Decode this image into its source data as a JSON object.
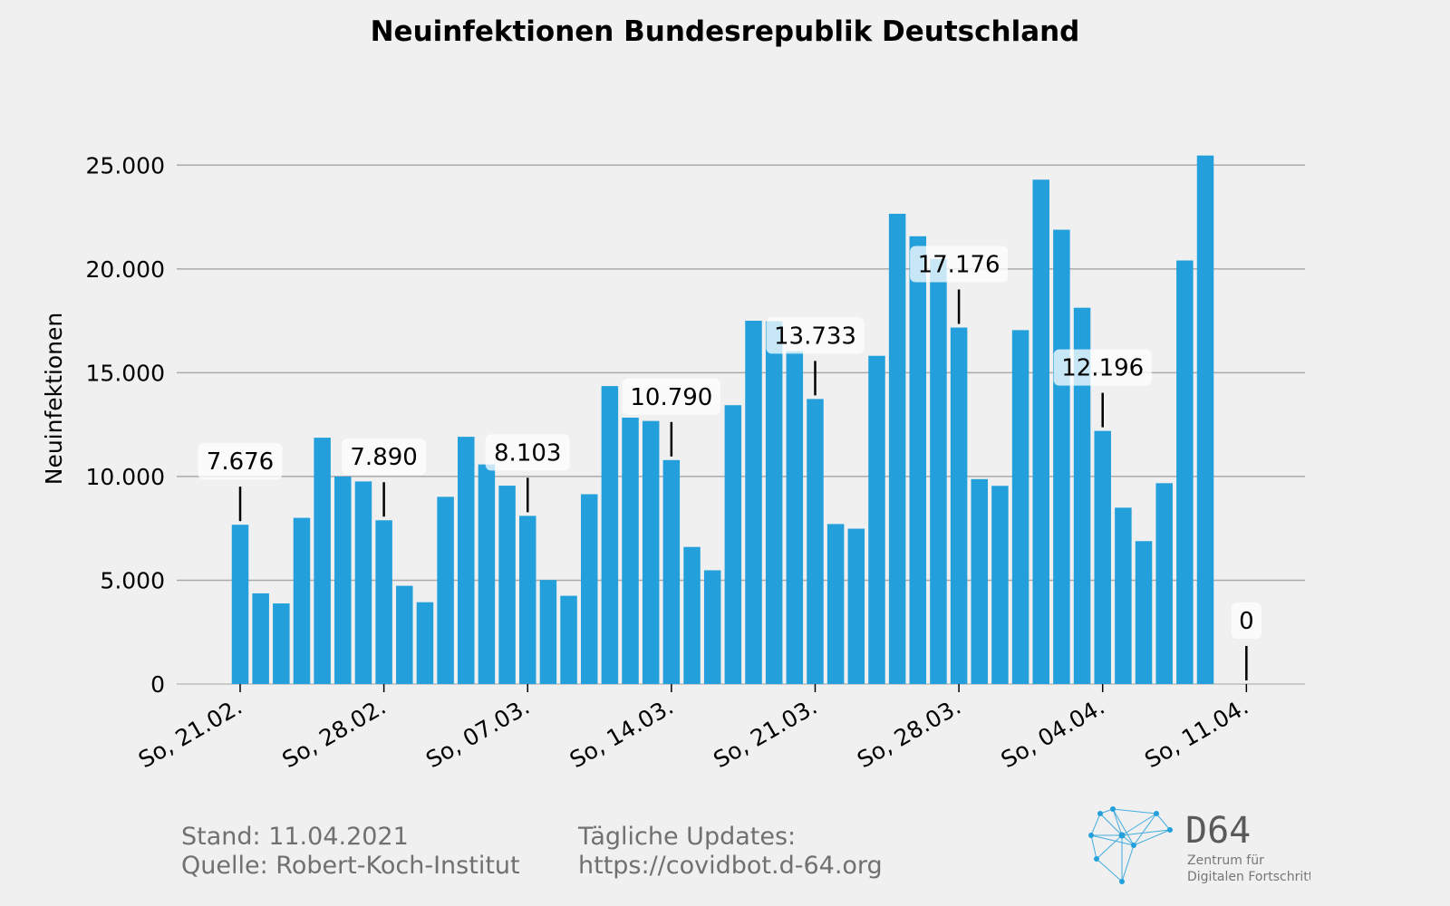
{
  "chart_data": {
    "type": "bar",
    "title": "Neuinfektionen Bundesrepublik Deutschland",
    "xlabel": "",
    "ylabel": "Neuinfektionen",
    "ylim": [
      0,
      27500
    ],
    "yticks": [
      {
        "value": 0,
        "label": "0"
      },
      {
        "value": 5000,
        "label": "5.000"
      },
      {
        "value": 10000,
        "label": "10.000"
      },
      {
        "value": 15000,
        "label": "15.000"
      },
      {
        "value": 20000,
        "label": "20.000"
      },
      {
        "value": 25000,
        "label": "25.000"
      }
    ],
    "xticks": [
      {
        "index": 0,
        "label": "So, 21.02."
      },
      {
        "index": 7,
        "label": "So, 28.02."
      },
      {
        "index": 14,
        "label": "So, 07.03."
      },
      {
        "index": 21,
        "label": "So, 14.03."
      },
      {
        "index": 28,
        "label": "So, 21.03."
      },
      {
        "index": 35,
        "label": "So, 28.03."
      },
      {
        "index": 42,
        "label": "So, 04.04."
      },
      {
        "index": 49,
        "label": "So, 11.04."
      }
    ],
    "grid": true,
    "bar_color": "#23a0db",
    "values": [
      7676,
      4369,
      3883,
      8007,
      11869,
      9997,
      9762,
      7890,
      4732,
      3943,
      9019,
      11912,
      10580,
      9557,
      8103,
      5011,
      4252,
      9146,
      14356,
      12834,
      12674,
      10790,
      6604,
      5480,
      13435,
      17504,
      17482,
      16033,
      13733,
      7709,
      7485,
      15813,
      22657,
      21573,
      20472,
      17176,
      9872,
      9549,
      17051,
      24300,
      21888,
      18129,
      12196,
      8497,
      6885,
      9677,
      20407,
      25464,
      null,
      0
    ],
    "annotations": [
      {
        "index": 0,
        "label": "7.676"
      },
      {
        "index": 7,
        "label": "7.890"
      },
      {
        "index": 14,
        "label": "8.103"
      },
      {
        "index": 21,
        "label": "10.790"
      },
      {
        "index": 28,
        "label": "13.733"
      },
      {
        "index": 35,
        "label": "17.176"
      },
      {
        "index": 42,
        "label": "12.196"
      },
      {
        "index": 49,
        "label": "0"
      }
    ]
  },
  "footer": {
    "stand": "Stand: 11.04.2021",
    "quelle": "Quelle: Robert-Koch-Institut",
    "updates_label": "Tägliche Updates:",
    "updates_url": "https://covidbot.d-64.org"
  },
  "logo": {
    "name": "D64",
    "tagline_1": "Zentrum für",
    "tagline_2": "Digitalen Fortschritt",
    "color": "#23a0db"
  }
}
